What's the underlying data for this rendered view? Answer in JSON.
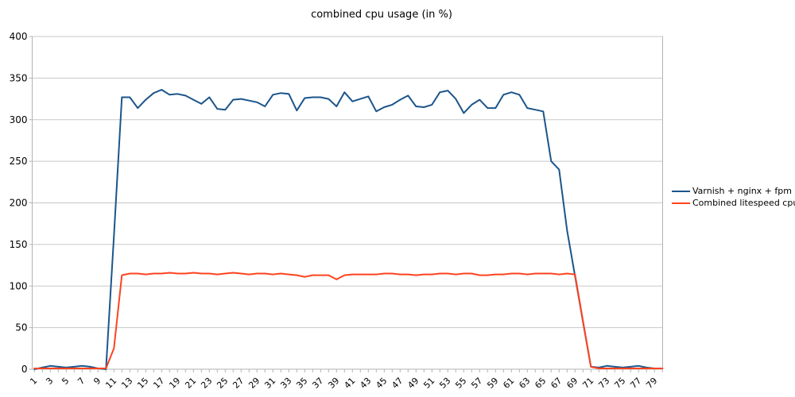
{
  "title": "combined cpu usage (in %)",
  "colors": {
    "series1": "#1B558B",
    "series2": "#FF431F",
    "grid": "#C8C8C8",
    "axis": "#B3B3B3",
    "text": "#000000",
    "background": "#FFFFFF"
  },
  "chart_data": {
    "type": "line",
    "title": "combined cpu usage (in %)",
    "num_points": 80,
    "x_tick_labels": [
      "1",
      "3",
      "5",
      "7",
      "9",
      "11",
      "13",
      "15",
      "17",
      "19",
      "21",
      "23",
      "25",
      "27",
      "29",
      "31",
      "33",
      "35",
      "37",
      "39",
      "41",
      "43",
      "45",
      "47",
      "49",
      "51",
      "53",
      "55",
      "57",
      "59",
      "61",
      "63",
      "65",
      "67",
      "69",
      "71",
      "73",
      "75",
      "77",
      "79"
    ],
    "ylim": [
      0,
      400
    ],
    "y_ticks": [
      0,
      50,
      100,
      150,
      200,
      250,
      300,
      350,
      400
    ],
    "grid": "horizontal",
    "legend_position": "right",
    "series": [
      {
        "name": "Varnish + nginx + fpm cpu",
        "color": "#1B558B",
        "values": [
          0,
          2,
          4,
          3,
          2,
          3,
          4,
          3,
          1,
          0,
          160,
          327,
          327,
          314,
          324,
          332,
          336,
          330,
          331,
          329,
          324,
          319,
          327,
          313,
          312,
          324,
          325,
          323,
          321,
          316,
          330,
          332,
          331,
          311,
          326,
          327,
          327,
          325,
          316,
          333,
          322,
          325,
          328,
          310,
          315,
          318,
          324,
          329,
          316,
          315,
          318,
          333,
          335,
          325,
          308,
          318,
          324,
          314,
          314,
          330,
          333,
          330,
          314,
          312,
          310,
          250,
          240,
          167,
          112,
          57,
          3,
          2,
          4,
          3,
          2,
          3,
          4,
          2,
          1,
          1
        ]
      },
      {
        "name": "Combined litespeed cpu",
        "color": "#FF431F",
        "values": [
          1,
          1,
          1,
          1,
          1,
          1,
          1,
          1,
          1,
          1,
          25,
          113,
          115,
          115,
          114,
          115,
          115,
          116,
          115,
          115,
          116,
          115,
          115,
          114,
          115,
          116,
          115,
          114,
          115,
          115,
          114,
          115,
          114,
          113,
          111,
          113,
          113,
          113,
          108,
          113,
          114,
          114,
          114,
          114,
          115,
          115,
          114,
          114,
          113,
          114,
          114,
          115,
          115,
          114,
          115,
          115,
          113,
          113,
          114,
          114,
          115,
          115,
          114,
          115,
          115,
          115,
          114,
          115,
          114,
          58,
          3,
          1,
          1,
          1,
          1,
          1,
          1,
          1,
          1,
          1
        ]
      }
    ]
  }
}
